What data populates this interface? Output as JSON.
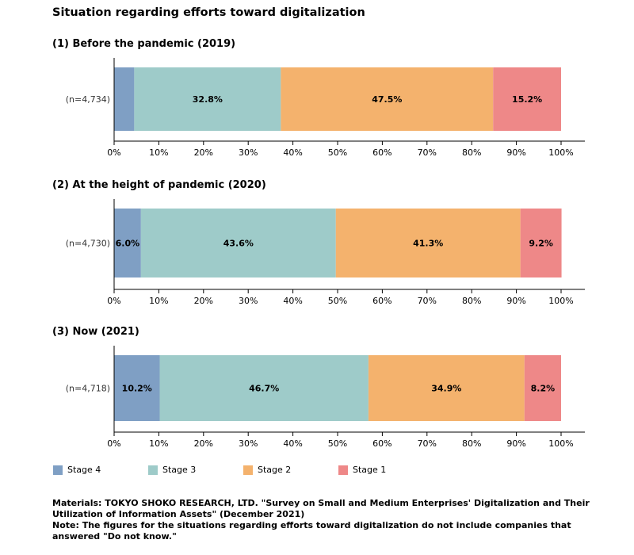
{
  "title": "Situation regarding efforts toward digitalization",
  "colors": {
    "Stage 4": "#7f9fc4",
    "Stage 3": "#9ecbc9",
    "Stage 2": "#f4b26d",
    "Stage 1": "#ee8888"
  },
  "chart_data": [
    {
      "type": "bar",
      "orientation": "horizontal",
      "stacked": true,
      "title": "(1) Before the pandemic (2019)",
      "categories": [
        "(n=4,734)"
      ],
      "series": [
        {
          "name": "Stage 4",
          "values": [
            4.5
          ],
          "label": ""
        },
        {
          "name": "Stage 3",
          "values": [
            32.8
          ],
          "label": "32.8%"
        },
        {
          "name": "Stage 2",
          "values": [
            47.5
          ],
          "label": "47.5%"
        },
        {
          "name": "Stage 1",
          "values": [
            15.2
          ],
          "label": "15.2%"
        }
      ],
      "xlim": [
        0,
        100
      ],
      "xticks": [
        "0%",
        "10%",
        "20%",
        "30%",
        "40%",
        "50%",
        "60%",
        "70%",
        "80%",
        "90%",
        "100%"
      ]
    },
    {
      "type": "bar",
      "orientation": "horizontal",
      "stacked": true,
      "title": "(2) At the height of pandemic (2020)",
      "categories": [
        "(n=4,730)"
      ],
      "series": [
        {
          "name": "Stage 4",
          "values": [
            6.0
          ],
          "label": "6.0%"
        },
        {
          "name": "Stage 3",
          "values": [
            43.6
          ],
          "label": "43.6%"
        },
        {
          "name": "Stage 2",
          "values": [
            41.3
          ],
          "label": "41.3%"
        },
        {
          "name": "Stage 1",
          "values": [
            9.2
          ],
          "label": "9.2%"
        }
      ],
      "xlim": [
        0,
        100
      ],
      "xticks": [
        "0%",
        "10%",
        "20%",
        "30%",
        "40%",
        "50%",
        "60%",
        "70%",
        "80%",
        "90%",
        "100%"
      ]
    },
    {
      "type": "bar",
      "orientation": "horizontal",
      "stacked": true,
      "title": "(3) Now (2021)",
      "categories": [
        "(n=4,718)"
      ],
      "series": [
        {
          "name": "Stage 4",
          "values": [
            10.2
          ],
          "label": "10.2%"
        },
        {
          "name": "Stage 3",
          "values": [
            46.7
          ],
          "label": "46.7%"
        },
        {
          "name": "Stage 2",
          "values": [
            34.9
          ],
          "label": "34.9%"
        },
        {
          "name": "Stage 1",
          "values": [
            8.2
          ],
          "label": "8.2%"
        }
      ],
      "xlim": [
        0,
        100
      ],
      "xticks": [
        "0%",
        "10%",
        "20%",
        "30%",
        "40%",
        "50%",
        "60%",
        "70%",
        "80%",
        "90%",
        "100%"
      ]
    }
  ],
  "legend": [
    "Stage 4",
    "Stage 3",
    "Stage 2",
    "Stage 1"
  ],
  "footnote": {
    "materials": "Materials: TOKYO SHOKO RESEARCH, LTD. \"Survey on Small and Medium Enterprises' Digitalization and Their Utilization of Information Assets\" (December 2021)",
    "note": "Note: The figures for the situations regarding efforts toward digitalization do not include companies that answered \"Do not know.\""
  }
}
